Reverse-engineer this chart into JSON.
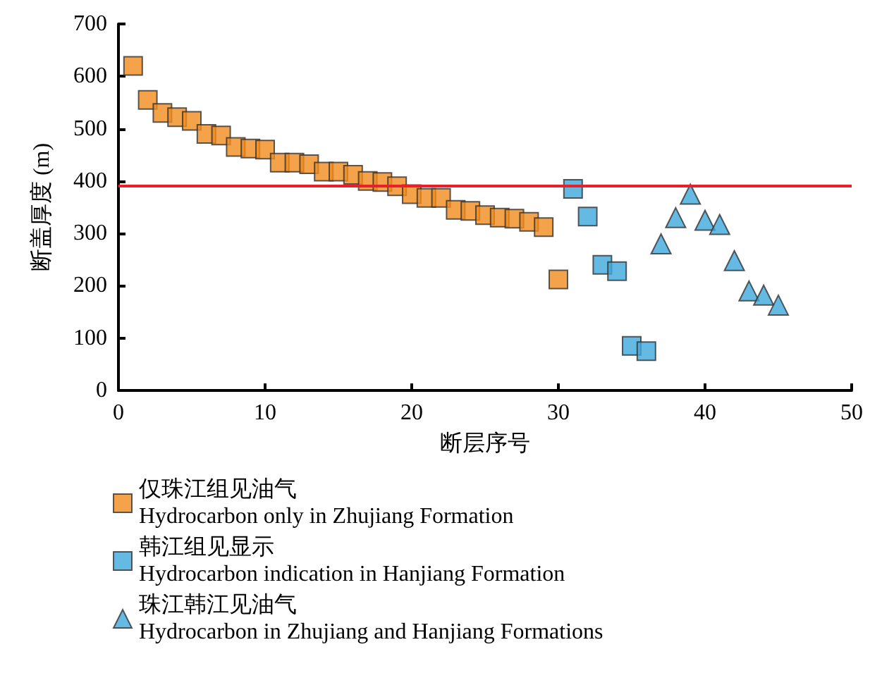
{
  "chart_data": {
    "type": "scatter",
    "xlabel": "断层序号",
    "ylabel": "断盖厚度 (m)",
    "xlim": [
      0,
      50
    ],
    "xticks": [
      0,
      10,
      20,
      30,
      40,
      50
    ],
    "ylim": [
      0,
      700
    ],
    "yticks": [
      0,
      100,
      200,
      300,
      400,
      500,
      600,
      700
    ],
    "grid": false,
    "legend": "bottom",
    "series": [
      {
        "name": "仅珠江组见油气\nHydrocarbon only in Zhujiang Formation",
        "color": "#f28c1e",
        "marker": "square",
        "x": [
          1,
          2,
          3,
          4,
          5,
          6,
          7,
          8,
          9,
          10,
          11,
          12,
          13,
          14,
          15,
          16,
          17,
          18,
          19,
          20,
          21,
          22,
          23,
          24,
          25,
          26,
          27,
          28,
          29,
          30
        ],
        "values": [
          620,
          555,
          530,
          522,
          515,
          490,
          487,
          465,
          462,
          460,
          435,
          435,
          432,
          418,
          418,
          412,
          400,
          398,
          390,
          375,
          368,
          368,
          345,
          343,
          335,
          330,
          328,
          322,
          312,
          212
        ]
      },
      {
        "name": "韩江组见显示\nHydrocarbon indication in Hanjiang Formation",
        "color": "#3fa9dc",
        "marker": "square",
        "x": [
          31,
          32,
          33,
          34,
          35,
          36
        ],
        "values": [
          385,
          332,
          240,
          228,
          85,
          75
        ]
      },
      {
        "name": "珠江韩江见油气\nHydrocarbon in Zhujiang and Hanjiang Formations",
        "color": "#3fa9dc",
        "marker": "triangle",
        "x": [
          37,
          38,
          39,
          40,
          41,
          42,
          43,
          44,
          45
        ],
        "values": [
          280,
          330,
          375,
          325,
          317,
          248,
          190,
          182,
          163
        ]
      }
    ],
    "ref_lines": [
      {
        "axis": "y",
        "value": 390,
        "color": "#e8202a",
        "line_style": "solid"
      }
    ]
  }
}
